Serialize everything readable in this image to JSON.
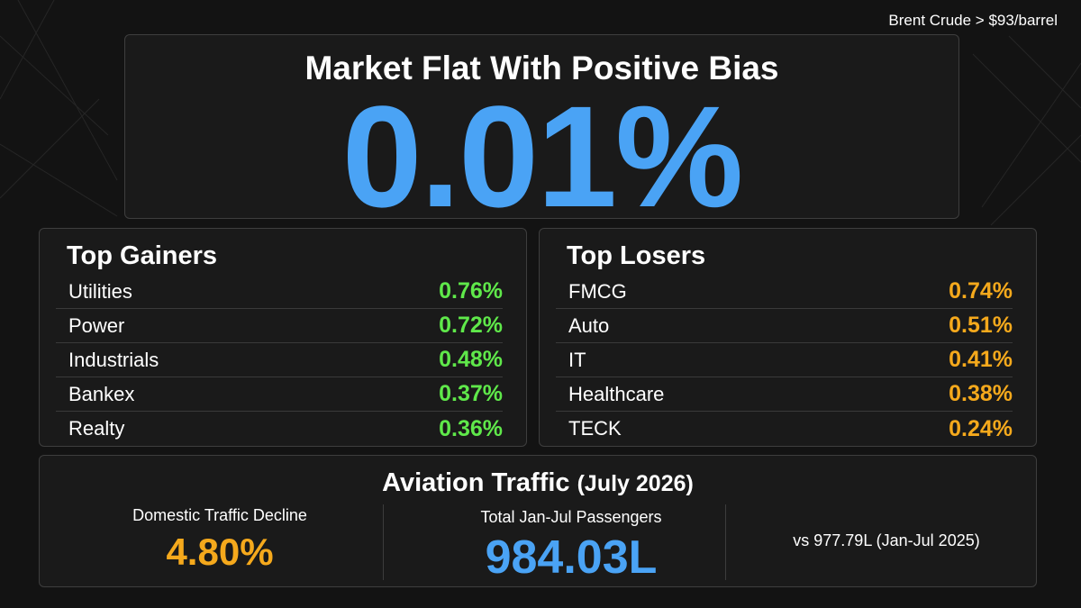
{
  "ticker": "Brent Crude > $93/barrel",
  "hero": {
    "title": "Market Flat With Positive Bias",
    "value": "0.01%"
  },
  "gainers": {
    "title": "Top Gainers",
    "items": [
      {
        "name": "Utilities",
        "value": "0.76%"
      },
      {
        "name": "Power",
        "value": "0.72%"
      },
      {
        "name": "Industrials",
        "value": "0.48%"
      },
      {
        "name": "Bankex",
        "value": "0.37%"
      },
      {
        "name": "Realty",
        "value": "0.36%"
      }
    ]
  },
  "losers": {
    "title": "Top Losers",
    "items": [
      {
        "name": "FMCG",
        "value": "0.74%"
      },
      {
        "name": "Auto",
        "value": "0.51%"
      },
      {
        "name": "IT",
        "value": "0.41%"
      },
      {
        "name": "Healthcare",
        "value": "0.38%"
      },
      {
        "name": "TECK",
        "value": "0.24%"
      }
    ]
  },
  "aviation": {
    "title": "Aviation Traffic",
    "title_paren": "(July 2026)",
    "domestic_label": "Domestic Traffic Decline",
    "domestic_value": "4.80%",
    "total_label": "Total Jan-Jul Passengers",
    "total_value": "984.03L",
    "comparison": "vs 977.79L (Jan-Jul 2025)"
  },
  "colors": {
    "accent_blue": "#4aa3f5",
    "gain_green": "#5fe84a",
    "loss_orange": "#f5a91c",
    "background": "#131313"
  }
}
